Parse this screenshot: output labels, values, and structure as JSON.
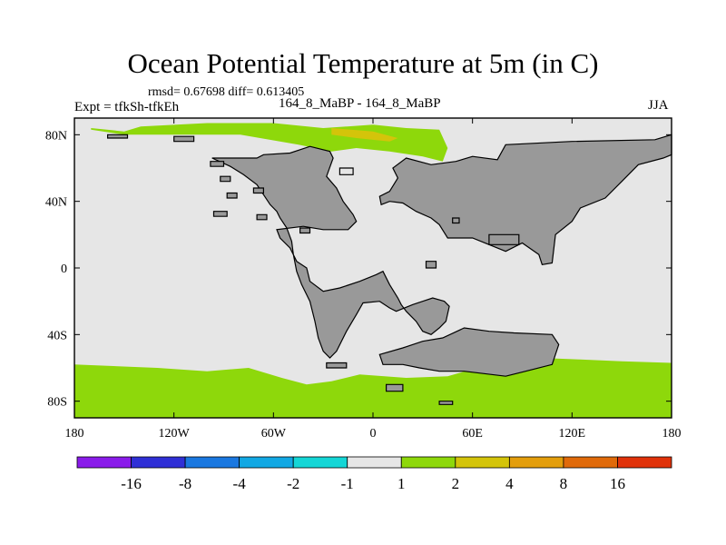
{
  "title": "Ocean Potential Temperature at 5m (in C)",
  "stats": "rmsd= 0.67698  diff= 0.613405",
  "experiment": "Expt = tfkSh-tfkEh",
  "case": "164_8_MaBP - 164_8_MaBP",
  "season": "JJA",
  "colors": {
    "ocean_base": "#e6e6e6",
    "land": "#999999",
    "warm_1_2": "#8ed80b",
    "warm_2_4": "#d4c40a",
    "outline": "#000000"
  },
  "chart_data": {
    "type": "heatmap",
    "projection": "cylindrical equidistant",
    "title": "Ocean Potential Temperature at 5m (in C)",
    "units": "C",
    "xlim": [
      -180,
      180
    ],
    "ylim": [
      -90,
      90
    ],
    "x_ticks": [
      {
        "value": -180,
        "label": "180"
      },
      {
        "value": -120,
        "label": "120W"
      },
      {
        "value": -60,
        "label": "60W"
      },
      {
        "value": 0,
        "label": "0"
      },
      {
        "value": 60,
        "label": "60E"
      },
      {
        "value": 120,
        "label": "120E"
      },
      {
        "value": 180,
        "label": "180"
      }
    ],
    "y_ticks": [
      {
        "value": 80,
        "label": "80N"
      },
      {
        "value": 40,
        "label": "40N"
      },
      {
        "value": 0,
        "label": "0"
      },
      {
        "value": -40,
        "label": "40S"
      },
      {
        "value": -80,
        "label": "80S"
      }
    ],
    "colorbar": {
      "bins": [
        {
          "color": "#8a1bea"
        },
        {
          "color": "#2f2fd6"
        },
        {
          "color": "#1a78e0"
        },
        {
          "color": "#12a8e3"
        },
        {
          "color": "#14d6d6"
        },
        {
          "color": "#e6e6e6"
        },
        {
          "color": "#8ed80b"
        },
        {
          "color": "#d4c40a"
        },
        {
          "color": "#e39e0c"
        },
        {
          "color": "#e06a0a"
        },
        {
          "color": "#e0320a"
        }
      ],
      "labels": [
        {
          "boundary": 1,
          "text": "-16"
        },
        {
          "boundary": 2,
          "text": "-8"
        },
        {
          "boundary": 3,
          "text": "-4"
        },
        {
          "boundary": 4,
          "text": "-2"
        },
        {
          "boundary": 5,
          "text": "-1"
        },
        {
          "boundary": 6,
          "text": "1"
        },
        {
          "boundary": 7,
          "text": "2"
        },
        {
          "boundary": 8,
          "text": "4"
        },
        {
          "boundary": 9,
          "text": "8"
        },
        {
          "boundary": 10,
          "text": "16"
        }
      ]
    },
    "regions": [
      {
        "name": "southern-ocean-band",
        "level": "1 to 2",
        "color": "#8ed80b",
        "points": [
          [
            -180,
            -58
          ],
          [
            -130,
            -60
          ],
          [
            -100,
            -62
          ],
          [
            -75,
            -60
          ],
          [
            -55,
            -66
          ],
          [
            -40,
            -70
          ],
          [
            -25,
            -68
          ],
          [
            -8,
            -64
          ],
          [
            20,
            -66
          ],
          [
            45,
            -65
          ],
          [
            70,
            -58
          ],
          [
            100,
            -54
          ],
          [
            125,
            -55
          ],
          [
            150,
            -56
          ],
          [
            180,
            -57
          ],
          [
            180,
            -90
          ],
          [
            -180,
            -90
          ]
        ]
      },
      {
        "name": "arctic-band",
        "level": "1 to 2",
        "color": "#8ed80b",
        "points": [
          [
            -170,
            84
          ],
          [
            -150,
            82
          ],
          [
            -140,
            85
          ],
          [
            -100,
            87
          ],
          [
            -60,
            87
          ],
          [
            -30,
            84
          ],
          [
            0,
            86
          ],
          [
            20,
            84
          ],
          [
            40,
            83
          ],
          [
            45,
            72
          ],
          [
            42,
            64
          ],
          [
            30,
            67
          ],
          [
            10,
            70
          ],
          [
            -10,
            72
          ],
          [
            -25,
            70
          ],
          [
            -45,
            74
          ],
          [
            -80,
            80
          ],
          [
            -120,
            80
          ],
          [
            -150,
            80
          ],
          [
            -170,
            83
          ]
        ]
      },
      {
        "name": "arctic-warm-patch",
        "level": "2 to 4",
        "color": "#d4c40a",
        "points": [
          [
            -25,
            84
          ],
          [
            0,
            82
          ],
          [
            15,
            78
          ],
          [
            10,
            76
          ],
          [
            -10,
            78
          ],
          [
            -25,
            80
          ]
        ]
      },
      {
        "name": "north-pacific-patch",
        "level": "1 to 2",
        "color": "#8ed80b",
        "points": [
          [
            132,
            63
          ],
          [
            140,
            64
          ],
          [
            146,
            62
          ],
          [
            140,
            58
          ],
          [
            134,
            59
          ]
        ]
      },
      {
        "name": "west-africa-coast-patch",
        "level": "1 to 2",
        "color": "#8ed80b",
        "points": [
          [
            -36,
            -20
          ],
          [
            -34,
            -20
          ],
          [
            -32,
            -32
          ],
          [
            -35,
            -33
          ]
        ]
      }
    ],
    "land_masses": [
      {
        "name": "west-continent",
        "points": [
          [
            -97,
            66
          ],
          [
            -70,
            66
          ],
          [
            -66,
            68
          ],
          [
            -50,
            69
          ],
          [
            -38,
            73
          ],
          [
            -26,
            70
          ],
          [
            -24,
            66
          ],
          [
            -28,
            55
          ],
          [
            -22,
            48
          ],
          [
            -18,
            40
          ],
          [
            -12,
            32
          ],
          [
            -10,
            28
          ],
          [
            -15,
            23
          ],
          [
            -30,
            23
          ],
          [
            -42,
            25
          ],
          [
            -58,
            23
          ],
          [
            -56,
            18
          ],
          [
            -50,
            12
          ],
          [
            -46,
            4
          ],
          [
            -40,
            0
          ],
          [
            -38,
            -8
          ],
          [
            -30,
            -14
          ],
          [
            -20,
            -12
          ],
          [
            -8,
            -8
          ],
          [
            2,
            -4
          ],
          [
            6,
            -2
          ],
          [
            10,
            -10
          ],
          [
            15,
            -18
          ],
          [
            17,
            -22
          ],
          [
            20,
            -26
          ],
          [
            26,
            -32
          ],
          [
            30,
            -38
          ],
          [
            35,
            -40
          ],
          [
            40,
            -36
          ],
          [
            44,
            -32
          ],
          [
            46,
            -23
          ],
          [
            43,
            -20
          ],
          [
            36,
            -18
          ],
          [
            30,
            -20
          ],
          [
            24,
            -22
          ],
          [
            14,
            -26
          ],
          [
            10,
            -24
          ],
          [
            4,
            -20
          ],
          [
            -6,
            -21
          ],
          [
            -10,
            -28
          ],
          [
            -16,
            -38
          ],
          [
            -22,
            -50
          ],
          [
            -26,
            -54
          ],
          [
            -30,
            -50
          ],
          [
            -33,
            -42
          ],
          [
            -35,
            -32
          ],
          [
            -38,
            -20
          ],
          [
            -43,
            -10
          ],
          [
            -46,
            -2
          ],
          [
            -48,
            8
          ],
          [
            -49,
            16
          ],
          [
            -52,
            24
          ],
          [
            -56,
            30
          ],
          [
            -58,
            34
          ],
          [
            -62,
            38
          ],
          [
            -66,
            44
          ],
          [
            -70,
            50
          ],
          [
            -78,
            56
          ],
          [
            -86,
            61
          ]
        ]
      },
      {
        "name": "east-continent",
        "points": [
          [
            20,
            66
          ],
          [
            35,
            62
          ],
          [
            50,
            64
          ],
          [
            60,
            67
          ],
          [
            75,
            65
          ],
          [
            80,
            74
          ],
          [
            120,
            76
          ],
          [
            170,
            77
          ],
          [
            180,
            80
          ],
          [
            180,
            68
          ],
          [
            175,
            66
          ],
          [
            160,
            62
          ],
          [
            150,
            52
          ],
          [
            140,
            42
          ],
          [
            125,
            36
          ],
          [
            120,
            28
          ],
          [
            110,
            20
          ],
          [
            108,
            3
          ],
          [
            102,
            2
          ],
          [
            100,
            8
          ],
          [
            90,
            15
          ],
          [
            80,
            10
          ],
          [
            60,
            18
          ],
          [
            45,
            18
          ],
          [
            40,
            26
          ],
          [
            35,
            30
          ],
          [
            26,
            34
          ],
          [
            18,
            39
          ],
          [
            10,
            40
          ],
          [
            5,
            38
          ],
          [
            4,
            43
          ],
          [
            10,
            46
          ],
          [
            15,
            54
          ],
          [
            12,
            60
          ]
        ]
      },
      {
        "name": "south-east-continent",
        "points": [
          [
            4,
            -52
          ],
          [
            18,
            -48
          ],
          [
            30,
            -44
          ],
          [
            42,
            -42
          ],
          [
            55,
            -36
          ],
          [
            70,
            -38
          ],
          [
            85,
            -39
          ],
          [
            108,
            -40
          ],
          [
            112,
            -46
          ],
          [
            108,
            -58
          ],
          [
            92,
            -62
          ],
          [
            80,
            -65
          ],
          [
            55,
            -62
          ],
          [
            40,
            -62
          ],
          [
            28,
            -60
          ],
          [
            18,
            -58
          ],
          [
            6,
            -58
          ]
        ]
      },
      {
        "name": "arctic-island-west",
        "points": [
          [
            -160,
            80
          ],
          [
            -148,
            80
          ],
          [
            -148,
            78
          ],
          [
            -160,
            78
          ]
        ]
      },
      {
        "name": "arctic-island-central",
        "points": [
          [
            -120,
            79
          ],
          [
            -108,
            79
          ],
          [
            -108,
            76
          ],
          [
            -120,
            76
          ]
        ]
      },
      {
        "name": "north-west-island",
        "points": [
          [
            -98,
            64
          ],
          [
            -90,
            64
          ],
          [
            -90,
            61
          ],
          [
            -98,
            61
          ]
        ]
      },
      {
        "name": "north-west-islet",
        "points": [
          [
            -92,
            55
          ],
          [
            -86,
            55
          ],
          [
            -86,
            52
          ],
          [
            -92,
            52
          ]
        ]
      },
      {
        "name": "west-island-1",
        "points": [
          [
            -88,
            45
          ],
          [
            -82,
            45
          ],
          [
            -82,
            42
          ],
          [
            -88,
            42
          ]
        ]
      },
      {
        "name": "west-island-2",
        "points": [
          [
            -72,
            48
          ],
          [
            -66,
            48
          ],
          [
            -66,
            45
          ],
          [
            -72,
            45
          ]
        ]
      },
      {
        "name": "west-island-3",
        "points": [
          [
            -96,
            34
          ],
          [
            -88,
            34
          ],
          [
            -88,
            31
          ],
          [
            -96,
            31
          ]
        ]
      },
      {
        "name": "west-island-4",
        "points": [
          [
            -70,
            32
          ],
          [
            -64,
            32
          ],
          [
            -64,
            29
          ],
          [
            -70,
            29
          ]
        ]
      },
      {
        "name": "central-islet",
        "points": [
          [
            -44,
            24
          ],
          [
            -38,
            24
          ],
          [
            -38,
            21
          ],
          [
            -44,
            21
          ]
        ]
      },
      {
        "name": "inland-sea",
        "points": [
          [
            -20,
            60
          ],
          [
            -12,
            60
          ],
          [
            -12,
            56
          ],
          [
            -20,
            56
          ]
        ],
        "fill": "#e6e6e6"
      },
      {
        "name": "mid-ocean-island",
        "points": [
          [
            32,
            4
          ],
          [
            38,
            4
          ],
          [
            38,
            0
          ],
          [
            32,
            0
          ]
        ]
      },
      {
        "name": "east-islet",
        "points": [
          [
            48,
            30
          ],
          [
            52,
            30
          ],
          [
            52,
            27
          ],
          [
            48,
            27
          ]
        ]
      },
      {
        "name": "east-island-chain",
        "points": [
          [
            70,
            20
          ],
          [
            88,
            20
          ],
          [
            88,
            14
          ],
          [
            70,
            14
          ]
        ]
      },
      {
        "name": "south-island-1",
        "points": [
          [
            -28,
            -57
          ],
          [
            -16,
            -57
          ],
          [
            -16,
            -60
          ],
          [
            -28,
            -60
          ]
        ]
      },
      {
        "name": "south-island-2",
        "points": [
          [
            8,
            -70
          ],
          [
            18,
            -70
          ],
          [
            18,
            -74
          ],
          [
            8,
            -74
          ]
        ]
      },
      {
        "name": "south-island-3",
        "points": [
          [
            40,
            -80
          ],
          [
            48,
            -80
          ],
          [
            48,
            -82
          ],
          [
            40,
            -82
          ]
        ]
      }
    ]
  }
}
